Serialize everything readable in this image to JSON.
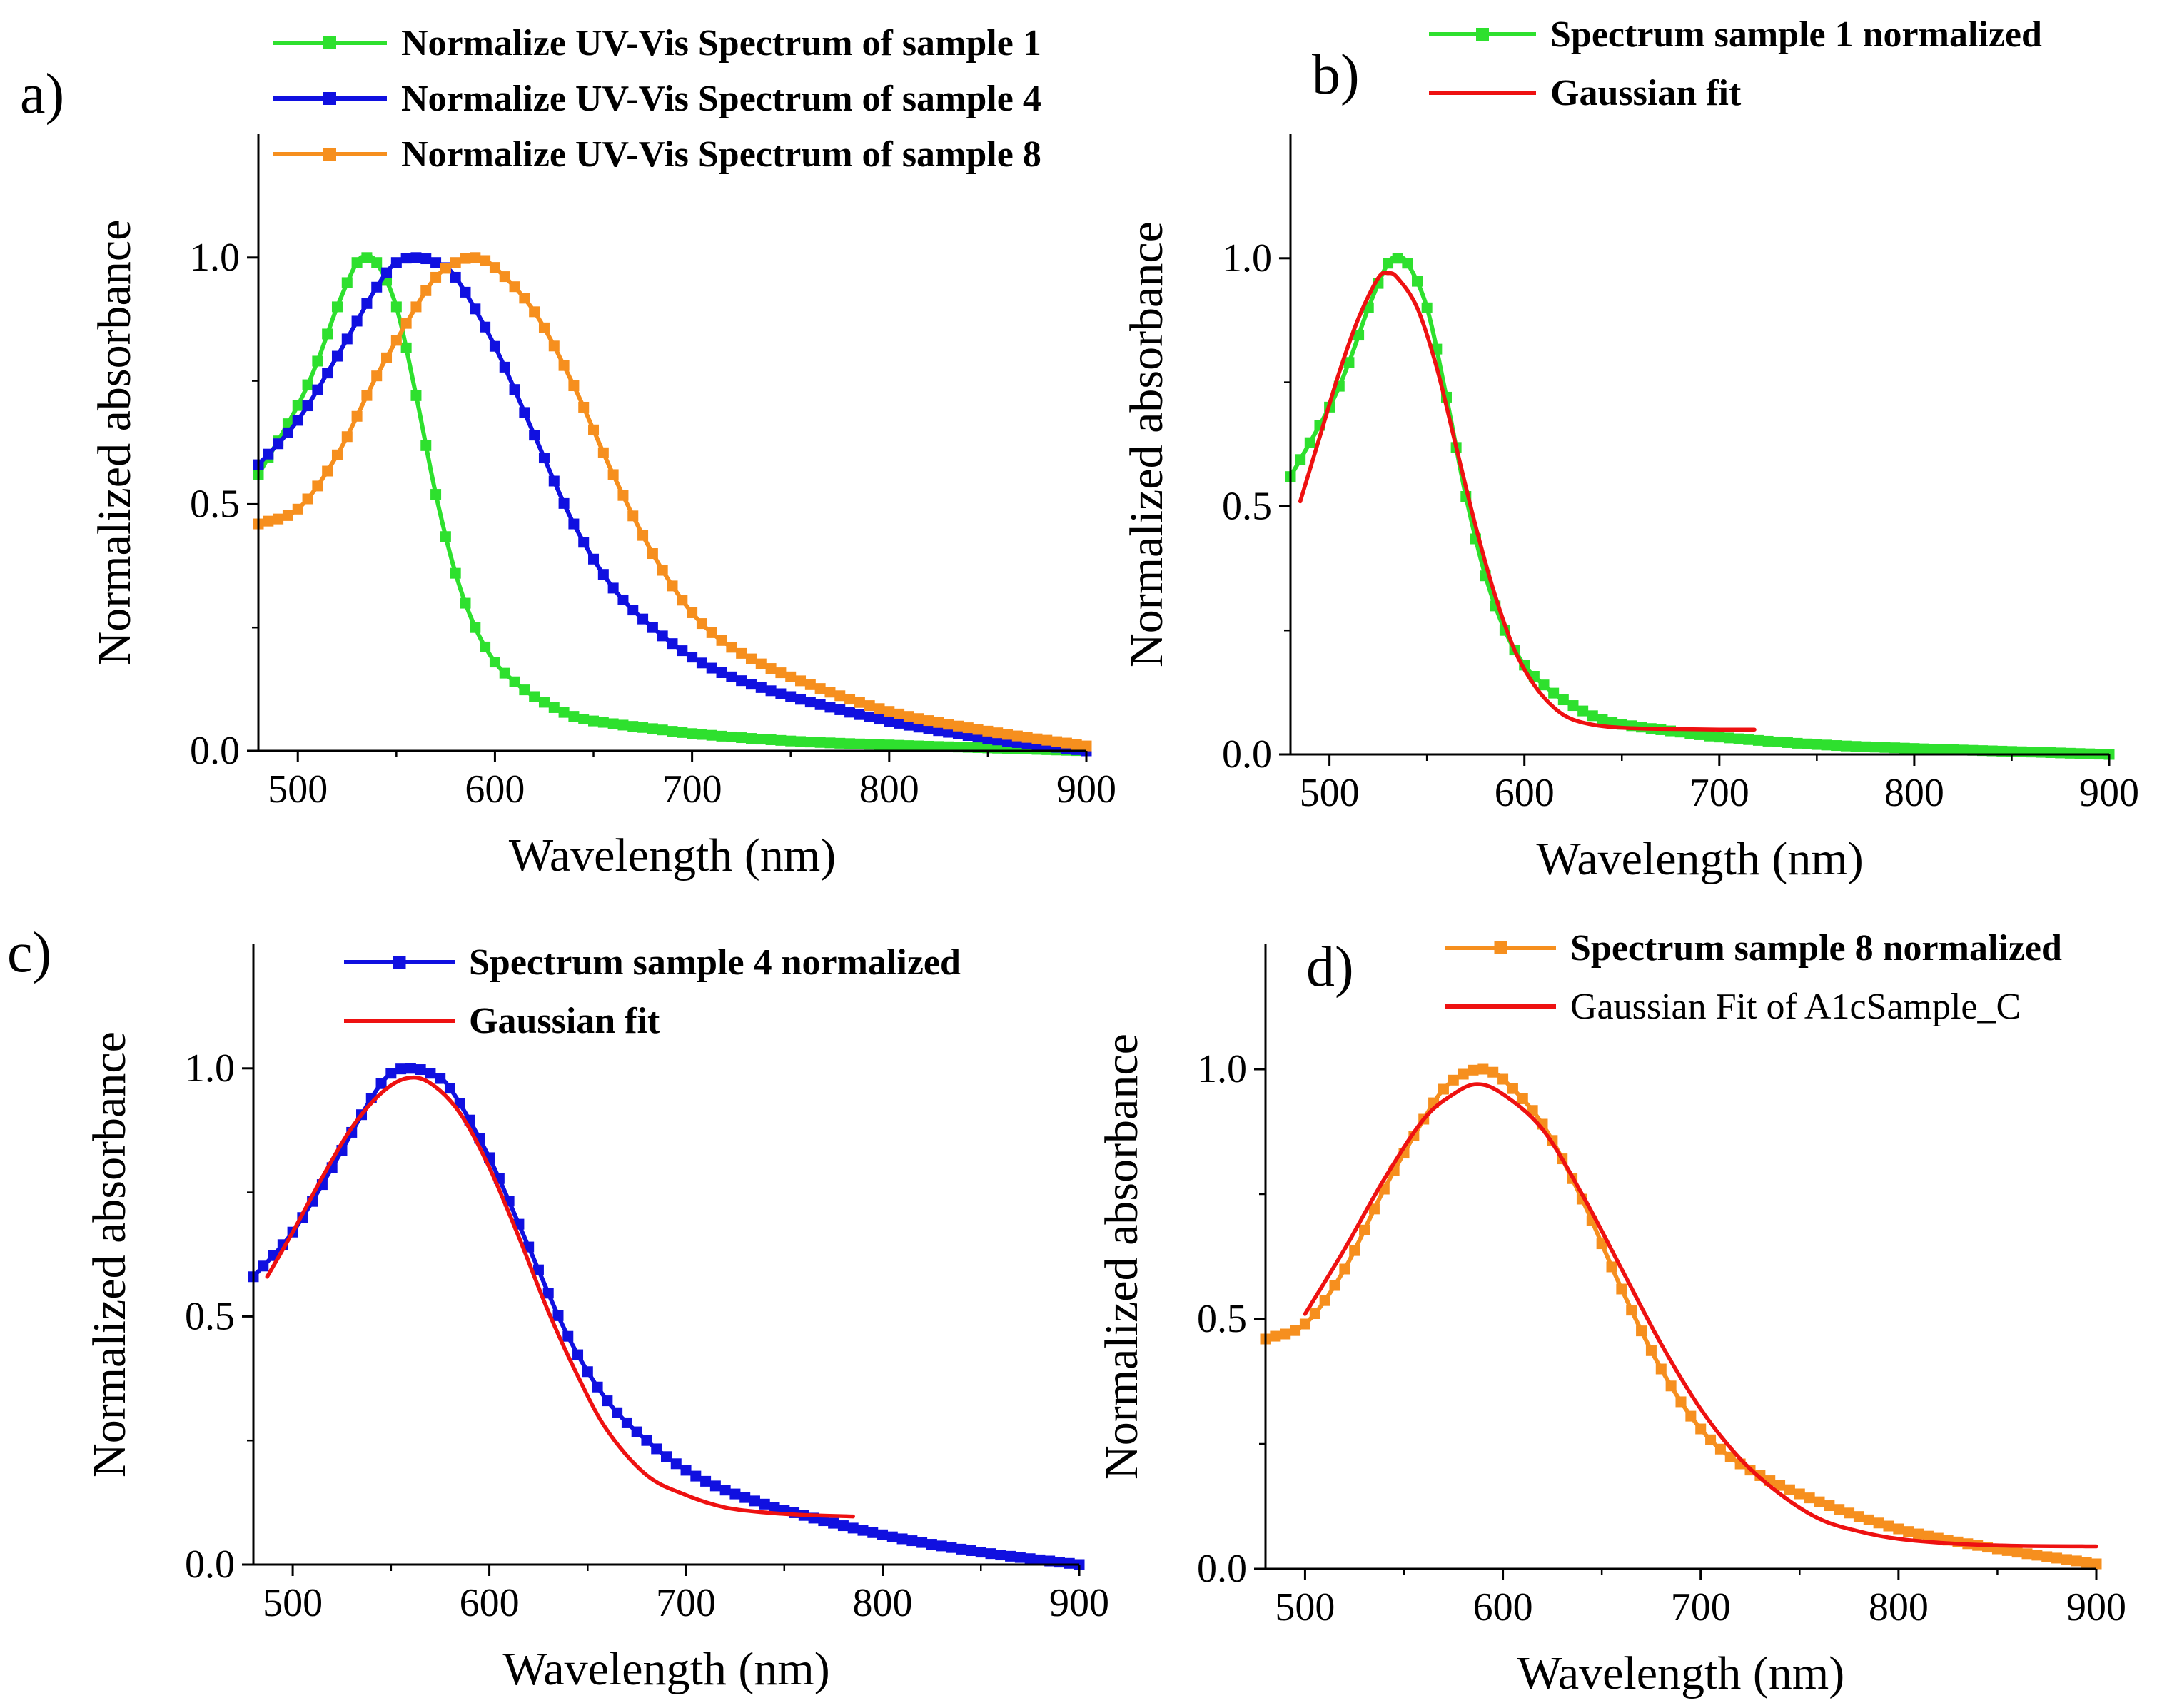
{
  "colors": {
    "green": "#2ee02e",
    "blue": "#1010e0",
    "orange": "#f68f1e",
    "red": "#ee1111",
    "axis": "#000000"
  },
  "chart_data": [
    {
      "id": "a",
      "panel_label": "a)",
      "type": "line",
      "xlabel": "Wavelength (nm)",
      "ylabel": "Normalized absorbance",
      "xlim": [
        480,
        900
      ],
      "ylim": [
        0,
        1.25
      ],
      "xticks": [
        "500",
        "600",
        "700",
        "800",
        "900"
      ],
      "yticks": [
        "0.0",
        "0.5",
        "1.0"
      ],
      "legend": "top",
      "series": [
        {
          "name": "Normalize UV-Vis Spectrum of sample 1",
          "color": "green",
          "marker": "square",
          "legend_bold": true,
          "fit": false,
          "x": [
            480,
            500,
            510,
            520,
            530,
            535,
            540,
            550,
            560,
            570,
            580,
            590,
            600,
            610,
            620,
            640,
            660,
            680,
            700,
            750,
            800,
            850,
            900
          ],
          "y": [
            0.56,
            0.7,
            0.79,
            0.9,
            0.99,
            1.0,
            0.99,
            0.9,
            0.72,
            0.52,
            0.36,
            0.25,
            0.18,
            0.14,
            0.11,
            0.07,
            0.055,
            0.045,
            0.035,
            0.02,
            0.012,
            0.006,
            0.0
          ]
        },
        {
          "name": "Normalize UV-Vis Spectrum of sample 4",
          "color": "blue",
          "marker": "square",
          "legend_bold": true,
          "fit": false,
          "x": [
            480,
            500,
            520,
            540,
            550,
            560,
            570,
            580,
            600,
            620,
            640,
            660,
            680,
            700,
            720,
            750,
            800,
            850,
            900
          ],
          "y": [
            0.58,
            0.67,
            0.8,
            0.94,
            0.99,
            1.0,
            0.99,
            0.96,
            0.82,
            0.64,
            0.46,
            0.33,
            0.25,
            0.19,
            0.15,
            0.11,
            0.06,
            0.025,
            0.0
          ]
        },
        {
          "name": "Normalize UV-Vis Spectrum of sample 8",
          "color": "orange",
          "marker": "square",
          "legend_bold": true,
          "fit": false,
          "x": [
            480,
            500,
            520,
            540,
            560,
            570,
            580,
            590,
            600,
            620,
            640,
            660,
            680,
            700,
            720,
            750,
            800,
            850,
            900
          ],
          "y": [
            0.46,
            0.49,
            0.6,
            0.76,
            0.9,
            0.96,
            0.99,
            1.0,
            0.98,
            0.89,
            0.74,
            0.56,
            0.4,
            0.28,
            0.21,
            0.15,
            0.08,
            0.04,
            0.01
          ]
        }
      ]
    },
    {
      "id": "b",
      "panel_label": "b)",
      "type": "line",
      "xlabel": "Wavelength (nm)",
      "ylabel": "Normalized absorbance",
      "xlim": [
        480,
        900
      ],
      "ylim": [
        0,
        1.25
      ],
      "xticks": [
        "500",
        "600",
        "700",
        "800",
        "900"
      ],
      "yticks": [
        "0.0",
        "0.5",
        "1.0"
      ],
      "legend": "top",
      "series": [
        {
          "name": "Spectrum sample 1 normalized",
          "color": "green",
          "marker": "square",
          "legend_bold": true,
          "fit": false,
          "x": [
            480,
            500,
            510,
            520,
            530,
            535,
            540,
            550,
            560,
            570,
            580,
            590,
            600,
            610,
            620,
            640,
            660,
            680,
            700,
            750,
            800,
            850,
            900
          ],
          "y": [
            0.56,
            0.7,
            0.79,
            0.9,
            0.99,
            1.0,
            0.99,
            0.9,
            0.72,
            0.52,
            0.36,
            0.25,
            0.18,
            0.14,
            0.11,
            0.07,
            0.055,
            0.045,
            0.035,
            0.02,
            0.012,
            0.006,
            0.0
          ]
        },
        {
          "name": "Gaussian fit",
          "color": "red",
          "marker": "none",
          "legend_bold": true,
          "fit": true,
          "x": [
            485,
            495,
            505,
            515,
            525,
            530,
            535,
            545,
            555,
            565,
            575,
            585,
            595,
            605,
            615,
            625,
            640,
            660,
            680,
            700,
            718
          ],
          "y": [
            0.51,
            0.64,
            0.77,
            0.88,
            0.96,
            0.97,
            0.96,
            0.9,
            0.78,
            0.62,
            0.46,
            0.32,
            0.21,
            0.14,
            0.095,
            0.07,
            0.057,
            0.052,
            0.051,
            0.05,
            0.05
          ]
        }
      ]
    },
    {
      "id": "c",
      "panel_label": "c)",
      "type": "line",
      "xlabel": "Wavelength (nm)",
      "ylabel": "Normalized absorbance",
      "xlim": [
        480,
        900
      ],
      "ylim": [
        0,
        1.25
      ],
      "xticks": [
        "500",
        "600",
        "700",
        "800",
        "900"
      ],
      "yticks": [
        "0.0",
        "0.5",
        "1.0"
      ],
      "legend": "top",
      "series": [
        {
          "name": "Spectrum sample 4 normalized",
          "color": "blue",
          "marker": "square",
          "legend_bold": true,
          "fit": false,
          "x": [
            480,
            500,
            520,
            540,
            550,
            560,
            570,
            580,
            600,
            620,
            640,
            660,
            680,
            700,
            720,
            750,
            800,
            850,
            900
          ],
          "y": [
            0.58,
            0.67,
            0.8,
            0.94,
            0.99,
            1.0,
            0.99,
            0.96,
            0.82,
            0.64,
            0.46,
            0.33,
            0.25,
            0.19,
            0.15,
            0.11,
            0.06,
            0.025,
            0.0
          ]
        },
        {
          "name": "Gaussian fit",
          "color": "red",
          "marker": "none",
          "legend_bold": true,
          "fit": true,
          "x": [
            487,
            500,
            515,
            530,
            545,
            558,
            570,
            585,
            600,
            615,
            630,
            645,
            660,
            680,
            700,
            720,
            740,
            760,
            785
          ],
          "y": [
            0.58,
            0.67,
            0.78,
            0.88,
            0.95,
            0.98,
            0.97,
            0.91,
            0.8,
            0.66,
            0.51,
            0.38,
            0.27,
            0.18,
            0.14,
            0.115,
            0.105,
            0.1,
            0.097
          ]
        }
      ]
    },
    {
      "id": "d",
      "panel_label": "d)",
      "type": "line",
      "xlabel": "Wavelength (nm)",
      "ylabel": "Normalized absorbance",
      "xlim": [
        480,
        900
      ],
      "ylim": [
        0,
        1.25
      ],
      "xticks": [
        "500",
        "600",
        "700",
        "800",
        "900"
      ],
      "yticks": [
        "0.0",
        "0.5",
        "1.0"
      ],
      "legend": "top",
      "series": [
        {
          "name": "Spectrum sample 8 normalized",
          "color": "orange",
          "marker": "square",
          "legend_bold": true,
          "fit": false,
          "x": [
            480,
            500,
            520,
            540,
            560,
            570,
            580,
            590,
            600,
            620,
            640,
            660,
            680,
            700,
            720,
            750,
            800,
            850,
            900
          ],
          "y": [
            0.46,
            0.49,
            0.6,
            0.76,
            0.9,
            0.96,
            0.99,
            1.0,
            0.98,
            0.89,
            0.74,
            0.56,
            0.4,
            0.28,
            0.21,
            0.15,
            0.08,
            0.04,
            0.01
          ]
        },
        {
          "name": "Gaussian Fit of A1cSample_C",
          "color": "red",
          "marker": "none",
          "legend_bold": false,
          "fit": true,
          "x": [
            500,
            520,
            540,
            560,
            575,
            587,
            600,
            620,
            640,
            660,
            680,
            700,
            720,
            740,
            760,
            780,
            800,
            830,
            860,
            900
          ],
          "y": [
            0.51,
            0.64,
            0.78,
            0.9,
            0.95,
            0.97,
            0.95,
            0.88,
            0.75,
            0.6,
            0.45,
            0.32,
            0.22,
            0.15,
            0.1,
            0.075,
            0.06,
            0.05,
            0.046,
            0.045
          ]
        }
      ]
    }
  ]
}
